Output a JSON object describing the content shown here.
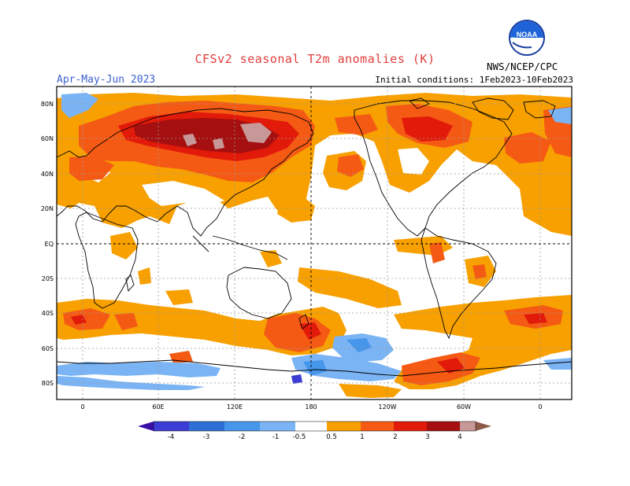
{
  "header": {
    "title": "CFSv2  seasonal  T2m  anomalies  (K)",
    "season": "Apr-May-Jun 2023",
    "initial_conditions": "Initial conditions:  1Feb2023-10Feb2023",
    "agency": "NWS/NCEP/CPC",
    "logo_text": "NOAA"
  },
  "map": {
    "projection": "equirectangular, Pacific-centered",
    "lat_labels": [
      "80N",
      "60N",
      "40N",
      "20N",
      "EQ",
      "20S",
      "40S",
      "60S",
      "80S"
    ],
    "lon_labels": [
      "0",
      "60E",
      "120E",
      "180",
      "120W",
      "60W",
      "0"
    ]
  },
  "colorbar": {
    "ticks": [
      "-4",
      "-3",
      "-2",
      "-1",
      "-0.5",
      "0.5",
      "1",
      "2",
      "3",
      "4"
    ],
    "colors": {
      "lt_neg4": "#3a0fa8",
      "neg4_neg3": "#3d3dd6",
      "neg3_neg2": "#2f6ed6",
      "neg2_neg1": "#4696ec",
      "neg1_neg05": "#7ab4f4",
      "neutral": "#ffffff",
      "p05_p1": "#f7a000",
      "p1_p2": "#f55a14",
      "p2_p3": "#e21a0a",
      "p3_p4": "#a50f0f",
      "p4_p5": "#c89898",
      "gt_p5": "#8c5a46"
    }
  }
}
